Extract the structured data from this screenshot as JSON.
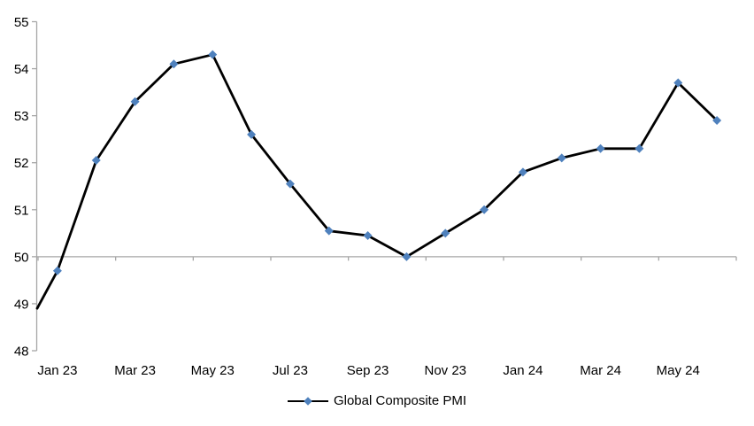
{
  "chart_data": {
    "type": "line",
    "title": "",
    "legend_label": "Global Composite PMI",
    "legend_position": "bottom",
    "categories": [
      "Jan 23",
      "Feb 23",
      "Mar 23",
      "Apr 23",
      "May 23",
      "Jun 23",
      "Jul 23",
      "Aug 23",
      "Sep 23",
      "Oct 23",
      "Nov 23",
      "Dec 23",
      "Jan 24",
      "Feb 24",
      "Mar 24",
      "Apr 24",
      "May 24",
      "Jun 24"
    ],
    "values": [
      49.7,
      52.05,
      53.3,
      54.1,
      54.3,
      52.6,
      51.55,
      50.55,
      50.45,
      50.0,
      50.5,
      51.0,
      51.8,
      52.1,
      52.3,
      52.3,
      53.7,
      52.9
    ],
    "pre_axis_value": 48.9,
    "x_tick_labels": [
      "Jan 23",
      "Mar 23",
      "May 23",
      "Jul 23",
      "Sep 23",
      "Nov 23",
      "Jan 24",
      "Mar 24",
      "May 24"
    ],
    "x_label_every": 2,
    "y_ticks": [
      48,
      49,
      50,
      51,
      52,
      53,
      54,
      55
    ],
    "ylim": [
      48,
      55
    ],
    "axis_cross_value": 50,
    "grid": false,
    "colors": {
      "line": "#000000",
      "marker": "#4F81BD",
      "axis": "#A6A6A6",
      "label": "#000000"
    }
  }
}
